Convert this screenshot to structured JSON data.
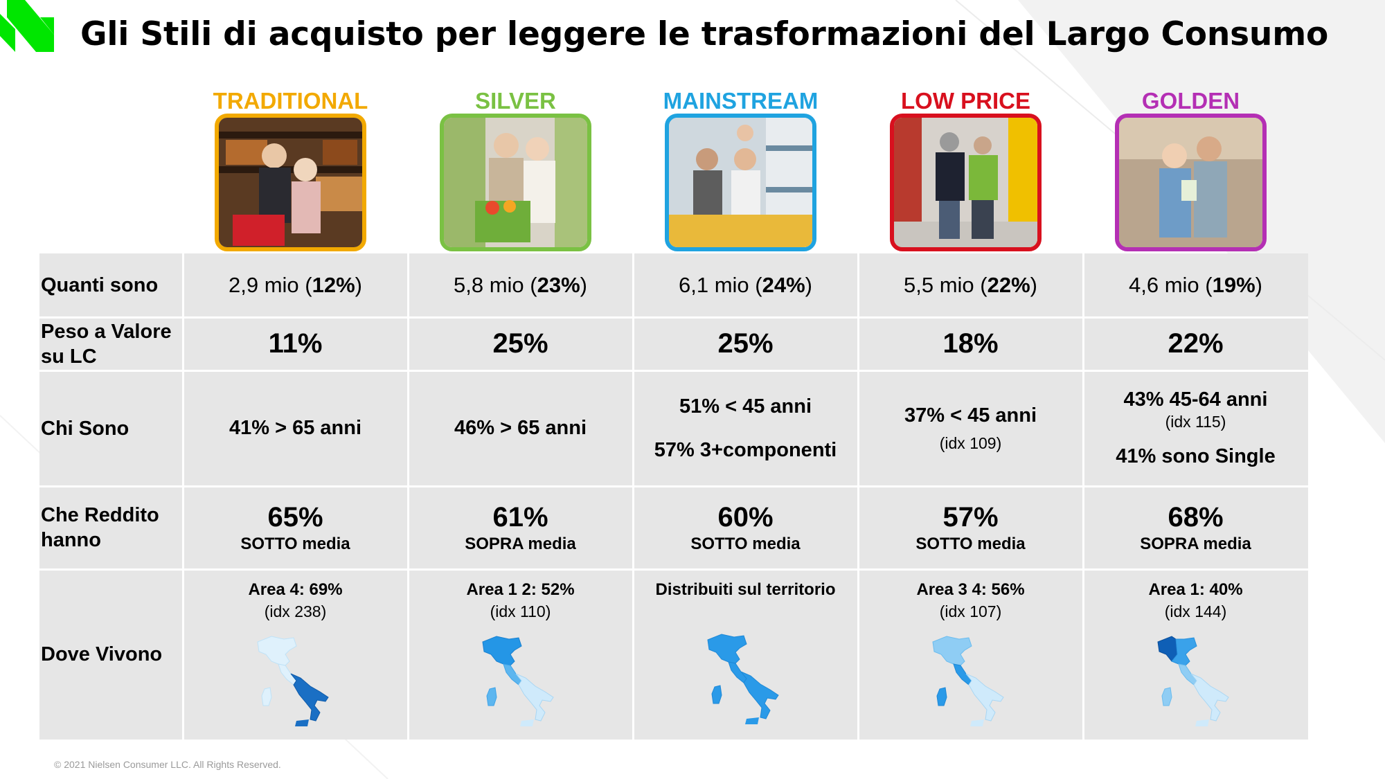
{
  "title": "Gli Stili di acquisto per leggere le trasformazioni del Largo Consumo",
  "colors": {
    "accent_green": "#00e600",
    "traditional": "#f2a900",
    "silver": "#7ac143",
    "mainstream": "#1fa3e0",
    "low_price": "#d8101e",
    "golden": "#b42fb4",
    "table_bg": "#e6e6e6"
  },
  "styles": [
    {
      "key": "traditional",
      "name": "TRADITIONAL",
      "photo_icon": "elderly-couple-shopping-photo"
    },
    {
      "key": "silver",
      "name": "SILVER",
      "photo_icon": "senior-couple-groceries-photo"
    },
    {
      "key": "mainstream",
      "name": "MAINSTREAM",
      "photo_icon": "family-supermarket-photo"
    },
    {
      "key": "low_price",
      "name": "LOW PRICE",
      "photo_icon": "couple-walking-aisle-photo"
    },
    {
      "key": "golden",
      "name": "GOLDEN",
      "photo_icon": "young-couple-shopping-photo"
    }
  ],
  "rows": {
    "quanti_sono": {
      "label": "Quanti sono",
      "cells": [
        {
          "value": "2,9 mio",
          "pct": "12%"
        },
        {
          "value": "5,8 mio",
          "pct": "23%"
        },
        {
          "value": "6,1 mio",
          "pct": "24%"
        },
        {
          "value": "5,5 mio",
          "pct": "22%"
        },
        {
          "value": "4,6 mio",
          "pct": "19%"
        }
      ]
    },
    "peso": {
      "label": "Peso a Valore su LC",
      "cells": [
        "11%",
        "25%",
        "25%",
        "18%",
        "22%"
      ]
    },
    "chi_sono": {
      "label": "Chi Sono",
      "cells": [
        {
          "line1": "41% > 65 anni"
        },
        {
          "line1": "46% > 65 anni"
        },
        {
          "line1": "51% < 45 anni",
          "line2": "57% 3+componenti"
        },
        {
          "line1": "37% < 45 anni",
          "idx": "(idx 109)"
        },
        {
          "line1": "43% 45-64 anni",
          "idx": "(idx 115)",
          "line2": "41% sono Single"
        }
      ]
    },
    "reddito": {
      "label": "Che Reddito hanno",
      "cells": [
        {
          "pct": "65%",
          "desc": "SOTTO media"
        },
        {
          "pct": "61%",
          "desc": "SOPRA media"
        },
        {
          "pct": "60%",
          "desc": "SOTTO media"
        },
        {
          "pct": "57%",
          "desc": "SOTTO media"
        },
        {
          "pct": "68%",
          "desc": "SOPRA media"
        }
      ]
    },
    "dove": {
      "label": "Dove Vivono",
      "cells": [
        {
          "area": "Area 4: 69%",
          "idx": "(idx 238)",
          "map_icon": "italy-map-south-highlight-icon"
        },
        {
          "area": "Area 1 2: 52%",
          "idx": "(idx 110)",
          "map_icon": "italy-map-north-highlight-icon"
        },
        {
          "area": "Distribuiti sul territorio",
          "map_icon": "italy-map-uniform-icon"
        },
        {
          "area": "Area 3 4: 56%",
          "idx": "(idx 107)",
          "map_icon": "italy-map-center-highlight-icon"
        },
        {
          "area": "Area 1: 40%",
          "idx": "(idx 144)",
          "map_icon": "italy-map-northwest-highlight-icon"
        }
      ]
    }
  },
  "footer": "© 2021 Nielsen Consumer LLC. All Rights Reserved."
}
